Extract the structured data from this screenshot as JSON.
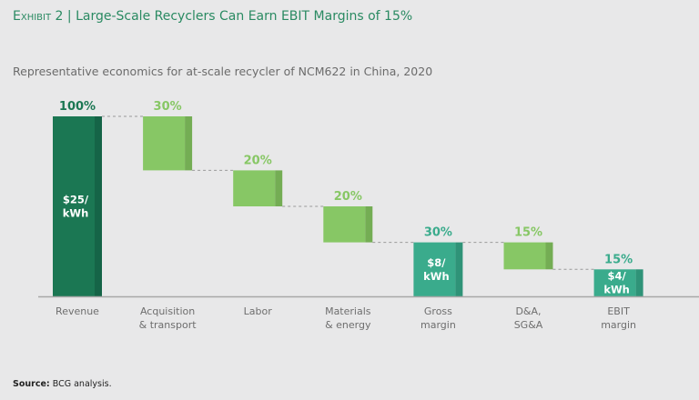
{
  "header": {
    "exhibit_label": "Exhibit 2",
    "separator": "|",
    "title": "Large-Scale Recyclers Can Earn EBIT Margins of 15%"
  },
  "source": {
    "label": "Source:",
    "text": "BCG analysis."
  },
  "colors": {
    "revenue": "#1b7753",
    "revenue_shade": "#156447",
    "cost": "#87c765",
    "cost_shade": "#74ad54",
    "margin": "#3aab8c",
    "margin_shade": "#2f9378",
    "title": "#2a8a62"
  },
  "chart_data": {
    "type": "waterfall",
    "title": "Representative economics for at-scale recycler of NCM622 in China, 2020",
    "xlabel": "",
    "ylabel": "",
    "ylim": [
      0,
      100
    ],
    "grid": false,
    "categories": [
      [
        "Revenue"
      ],
      [
        "Acquisition",
        "& transport"
      ],
      [
        "Labor"
      ],
      [
        "Materials",
        "& energy"
      ],
      [
        "Gross",
        "margin"
      ],
      [
        "D&A,",
        "SG&A"
      ],
      [
        "EBIT",
        "margin"
      ]
    ],
    "bars": [
      {
        "kind": "revenue",
        "start": 0,
        "end": 100,
        "value": 100,
        "label": "100%",
        "inner_label": [
          "$25/",
          "kWh"
        ]
      },
      {
        "kind": "cost",
        "start": 70,
        "end": 100,
        "value": 30,
        "label": "30%"
      },
      {
        "kind": "cost",
        "start": 50,
        "end": 70,
        "value": 20,
        "label": "20%"
      },
      {
        "kind": "cost",
        "start": 30,
        "end": 50,
        "value": 20,
        "label": "20%"
      },
      {
        "kind": "margin",
        "start": 0,
        "end": 30,
        "value": 30,
        "label": "30%",
        "inner_label": [
          "$8/",
          "kWh"
        ]
      },
      {
        "kind": "cost",
        "start": 15,
        "end": 30,
        "value": 15,
        "label": "15%"
      },
      {
        "kind": "margin",
        "start": 0,
        "end": 15,
        "value": 15,
        "label": "15%",
        "inner_label": [
          "$4/",
          "kWh"
        ]
      }
    ]
  }
}
